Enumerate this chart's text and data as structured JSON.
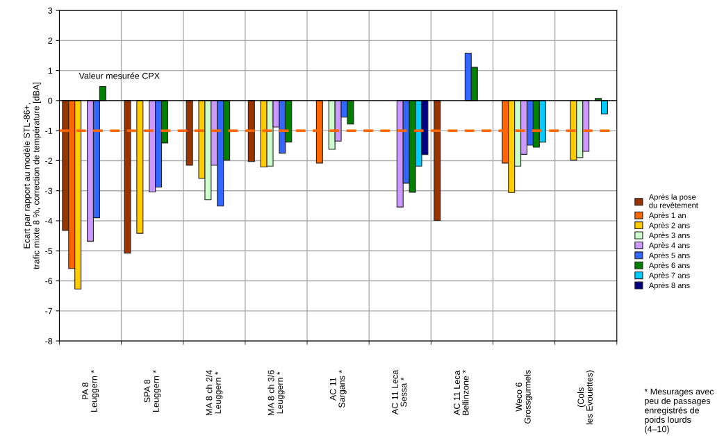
{
  "chart_data": {
    "type": "bar",
    "ylabel": "Ecart par rapport au modèle STL-86+,\ntrafic mixte 8 %, correction de température [dBA]",
    "categories": [
      "PA 8\nLeuggern *",
      "SPA 8\nLeuggern *",
      "MA 8 ch 2/4\nLeuggern *",
      "MA 8 ch 3/6\nLeuggern *",
      "AC 11\nSargans *",
      "AC 11 Leca\nSessa *",
      "AC 11 Leca\nBellinzone *",
      "Weco 6\nGrossgurmels",
      "(Cols\nles Evouettes)"
    ],
    "series": [
      {
        "name": "Après la pose\ndu revêtement",
        "color": "#993300",
        "values": [
          -4.32,
          -5.08,
          -2.15,
          -2.03,
          null,
          null,
          -3.99,
          null,
          null
        ]
      },
      {
        "name": "Après 1 an",
        "color": "#ff6600",
        "values": [
          -5.59,
          null,
          null,
          null,
          -2.08,
          null,
          null,
          -2.08,
          null
        ]
      },
      {
        "name": "Après 2 ans",
        "color": "#ffcc00",
        "values": [
          -6.27,
          -4.42,
          -2.59,
          -2.21,
          null,
          null,
          null,
          -3.06,
          -1.98
        ]
      },
      {
        "name": "Après 3 ans",
        "color": "#ccffcc",
        "values": [
          null,
          null,
          -3.3,
          -2.18,
          -1.62,
          null,
          null,
          -2.18,
          -1.9
        ]
      },
      {
        "name": "Après 4 ans",
        "color": "#cc99ff",
        "values": [
          -4.68,
          -3.04,
          -2.15,
          -0.88,
          -1.35,
          -3.54,
          null,
          -1.79,
          -1.69
        ]
      },
      {
        "name": "Après 5 ans",
        "color": "#3366ff",
        "values": [
          -3.9,
          -2.88,
          -3.51,
          -1.75,
          -0.55,
          -2.75,
          1.58,
          -1.48,
          null
        ]
      },
      {
        "name": "Après 6 ans",
        "color": "#008000",
        "values": [
          0.47,
          -1.41,
          -1.98,
          -1.38,
          -0.78,
          -3.05,
          1.11,
          -1.55,
          0.07
        ]
      },
      {
        "name": "Après 7 ans",
        "color": "#00ccff",
        "values": [
          null,
          null,
          null,
          null,
          null,
          -2.18,
          null,
          -1.38,
          -0.44
        ]
      },
      {
        "name": "Après 8 ans",
        "color": "#000080",
        "values": [
          null,
          null,
          null,
          null,
          null,
          -1.8,
          null,
          null,
          null
        ]
      }
    ],
    "ylim": [
      -8,
      3
    ],
    "yticks": [
      -8,
      -7,
      -6,
      -5,
      -4,
      -3,
      -2,
      -1,
      0,
      1,
      2,
      3
    ],
    "ref_lines": [
      {
        "axis": "y",
        "value": -1,
        "label": null,
        "color": "#ff6600",
        "line_style": "dashed"
      }
    ],
    "annotations": [
      "Valeur mesurée CPX",
      "* Mesurages avec\npeu de passages\nenregistrés de\npoids lourds\n(4–10)"
    ],
    "grid": true,
    "legend": "right"
  }
}
